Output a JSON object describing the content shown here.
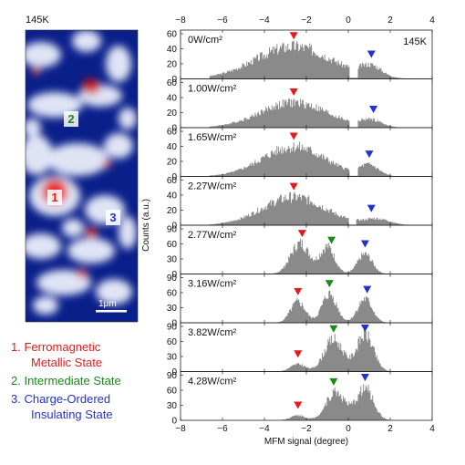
{
  "map": {
    "temperature": "145K",
    "scalebar": "1μm",
    "regions": [
      {
        "number": "1",
        "color": "#e41a1c"
      },
      {
        "number": "2",
        "color": "#1a8a1a"
      },
      {
        "number": "3",
        "color": "#2233cc"
      }
    ]
  },
  "legend": [
    {
      "number": "1.",
      "lines": [
        "Ferromagnetic",
        "Metallic State"
      ],
      "color": "#e41a1c"
    },
    {
      "number": "2.",
      "lines": [
        "Intermediate State"
      ],
      "color": "#1a8a1a"
    },
    {
      "number": "3.",
      "lines": [
        "Charge-Ordered",
        "Insulating State"
      ],
      "color": "#2233cc"
    }
  ],
  "chart_data": {
    "type": "area",
    "temperature_label": "145K",
    "xlabel": "MFM signal (degree)",
    "ylabel": "Counts (a.u.)",
    "xlim": [
      -8,
      4
    ],
    "xticks": [
      -8,
      -6,
      -4,
      -2,
      0,
      2,
      4
    ],
    "marker_colors": {
      "metallic": "#e41a1c",
      "intermediate": "#1a8a1a",
      "insulating": "#2233cc"
    },
    "panels": [
      {
        "label": "0W/cm²",
        "ylim": [
          0,
          60
        ],
        "yticks": [
          60,
          40,
          20,
          0
        ],
        "peaks": [
          {
            "x": -2.6,
            "a": 44,
            "s": 1.8
          },
          {
            "x": 1.1,
            "a": 14,
            "s": 0.5
          }
        ],
        "cutoff": 0.1,
        "markers": [
          {
            "x": -2.6,
            "state": "metallic"
          },
          {
            "x": 1.1,
            "state": "insulating"
          }
        ]
      },
      {
        "label": "1.00W/cm²",
        "ylim": [
          0,
          60
        ],
        "yticks": [
          60,
          40,
          20,
          0
        ],
        "peaks": [
          {
            "x": -2.6,
            "a": 34,
            "s": 1.6
          },
          {
            "x": 1.1,
            "a": 9,
            "s": 0.5
          }
        ],
        "cutoff": 0.1,
        "markers": [
          {
            "x": -2.6,
            "state": "metallic"
          },
          {
            "x": 1.2,
            "state": "insulating"
          }
        ]
      },
      {
        "label": "1.65W/cm²",
        "ylim": [
          0,
          60
        ],
        "yticks": [
          60,
          40,
          20,
          0
        ],
        "peaks": [
          {
            "x": -2.6,
            "a": 40,
            "s": 1.5
          },
          {
            "x": 1.0,
            "a": 14,
            "s": 0.45
          }
        ],
        "cutoff": 0.1,
        "markers": [
          {
            "x": -2.6,
            "state": "metallic"
          },
          {
            "x": 1.0,
            "state": "insulating"
          }
        ]
      },
      {
        "label": "2.27W/cm²",
        "ylim": [
          0,
          60
        ],
        "yticks": [
          60,
          40,
          20,
          0
        ],
        "peaks": [
          {
            "x": -2.6,
            "a": 38,
            "s": 1.5
          },
          {
            "x": 1.4,
            "a": 8,
            "s": 0.6
          }
        ],
        "cutoff": 0.05,
        "markers": [
          {
            "x": -2.6,
            "state": "metallic"
          },
          {
            "x": 1.1,
            "state": "insulating"
          }
        ]
      },
      {
        "label": "2.77W/cm²",
        "ylim": [
          0,
          90
        ],
        "yticks": [
          90,
          60,
          30,
          0
        ],
        "peaks": [
          {
            "x": -2.3,
            "a": 62,
            "s": 0.45
          },
          {
            "x": -1.0,
            "a": 55,
            "s": 0.35
          },
          {
            "x": 0.8,
            "a": 40,
            "s": 0.35
          }
        ],
        "cutoff": null,
        "markers": [
          {
            "x": -2.2,
            "state": "metallic"
          },
          {
            "x": -0.8,
            "state": "intermediate"
          },
          {
            "x": 0.8,
            "state": "insulating"
          }
        ]
      },
      {
        "label": "3.16W/cm²",
        "ylim": [
          0,
          90
        ],
        "yticks": [
          90,
          60,
          30,
          0
        ],
        "peaks": [
          {
            "x": -2.4,
            "a": 42,
            "s": 0.35
          },
          {
            "x": -0.9,
            "a": 58,
            "s": 0.35
          },
          {
            "x": 0.8,
            "a": 48,
            "s": 0.35
          }
        ],
        "cutoff": null,
        "markers": [
          {
            "x": -2.4,
            "state": "metallic"
          },
          {
            "x": -0.9,
            "state": "intermediate"
          },
          {
            "x": 0.9,
            "state": "insulating"
          }
        ]
      },
      {
        "label": "3.82W/cm²",
        "ylim": [
          0,
          90
        ],
        "yticks": [
          90,
          60,
          30,
          0
        ],
        "peaks": [
          {
            "x": -2.4,
            "a": 15,
            "s": 0.35
          },
          {
            "x": -0.7,
            "a": 65,
            "s": 0.45
          },
          {
            "x": 0.8,
            "a": 75,
            "s": 0.4
          }
        ],
        "cutoff": null,
        "markers": [
          {
            "x": -2.4,
            "state": "metallic"
          },
          {
            "x": -0.7,
            "state": "intermediate"
          },
          {
            "x": 0.8,
            "state": "insulating"
          }
        ]
      },
      {
        "label": "4.28W/cm²",
        "ylim": [
          0,
          90
        ],
        "yticks": [
          90,
          60,
          30,
          0
        ],
        "peaks": [
          {
            "x": -2.4,
            "a": 10,
            "s": 0.35
          },
          {
            "x": -0.6,
            "a": 58,
            "s": 0.45
          },
          {
            "x": 0.8,
            "a": 65,
            "s": 0.4
          }
        ],
        "cutoff": null,
        "markers": [
          {
            "x": -2.4,
            "state": "metallic"
          },
          {
            "x": -0.7,
            "state": "intermediate"
          },
          {
            "x": 0.8,
            "state": "insulating"
          }
        ]
      }
    ]
  }
}
